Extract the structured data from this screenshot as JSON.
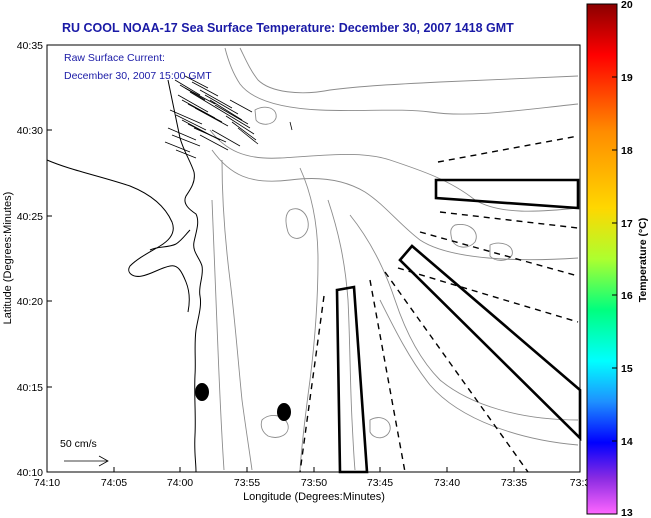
{
  "title": "RU COOL  NOAA-17 Sea Surface Temperature:  December 30, 2007 1418 GMT",
  "current_note": {
    "line1": "Raw Surface Current:",
    "line2": "December 30, 2007 15:00 GMT"
  },
  "scale_label": "50 cm/s",
  "axes": {
    "xlabel": "Longitude (Degrees:Minutes)",
    "ylabel": "Latitude (Degrees:Minutes)",
    "xticks": [
      "74:10",
      "74:05",
      "74:00",
      "73:55",
      "73:50",
      "73:45",
      "73:40",
      "73:35",
      "73:3"
    ],
    "yticks": [
      "40:35",
      "40:30",
      "40:25",
      "40:20",
      "40:15",
      "40:10"
    ]
  },
  "colorbar": {
    "label": "Temperature (°C)",
    "ticks": [
      "20",
      "19",
      "18",
      "17",
      "16",
      "15",
      "14",
      "13"
    ],
    "colors": [
      "#8b0000",
      "#ff0000",
      "#ff8c00",
      "#ffd700",
      "#adff2f",
      "#00ff7f",
      "#00ffff",
      "#1e90ff",
      "#0000ff",
      "#8a2be2",
      "#ff00ff"
    ]
  },
  "colors": {
    "title": "#1a1aa6",
    "contour": "#8c8c8c",
    "outline": "#000000"
  },
  "chart_data": {
    "type": "map",
    "title": "RU COOL  NOAA-17 Sea Surface Temperature:  December 30, 2007 1418 GMT",
    "xlabel": "Longitude (Degrees:Minutes)",
    "ylabel": "Latitude (Degrees:Minutes)",
    "x_range": [
      "74:10",
      "73:3"
    ],
    "y_range": [
      "40:10",
      "40:35"
    ],
    "colorbar_range": [
      13,
      20
    ]
  }
}
